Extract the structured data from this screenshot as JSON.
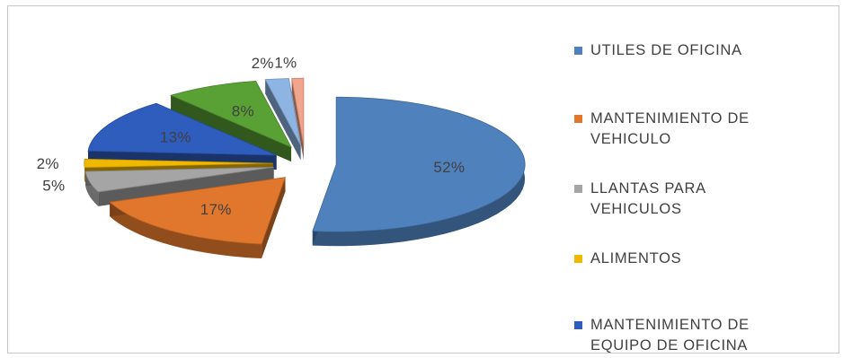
{
  "chart_data": {
    "type": "pie",
    "title": "",
    "style": "3d-exploded",
    "legend_position": "right",
    "categories": [
      "UTILES DE OFICINA",
      "MANTENIMIENTO DE VEHICULO",
      "LLANTAS PARA VEHICULOS",
      "ALIMENTOS",
      "MANTENIMIENTO DE EQUIPO DE OFICINA",
      "",
      "",
      ""
    ],
    "values": [
      52,
      17,
      5,
      2,
      13,
      8,
      2,
      1
    ],
    "data_labels": [
      "52%",
      "17%",
      "5%",
      "2%",
      "13%",
      "8%",
      "2%",
      "1%"
    ],
    "colors": [
      "#4f81bd",
      "#e0772c",
      "#a5a5a5",
      "#f1b800",
      "#2f5dbe",
      "#5aa135",
      "#8eb4e3",
      "#f0a58c"
    ]
  },
  "legend": {
    "items": [
      {
        "label": "UTILES DE OFICINA",
        "color": "#4f81bd"
      },
      {
        "label": "MANTENIMIENTO DE\nVEHICULO",
        "color": "#e0772c"
      },
      {
        "label": "LLANTAS PARA\nVEHICULOS",
        "color": "#a5a5a5"
      },
      {
        "label": "ALIMENTOS",
        "color": "#f1b800"
      },
      {
        "label": "MANTENIMIENTO DE\nEQUIPO DE OFICINA",
        "color": "#2f5dbe"
      }
    ]
  }
}
